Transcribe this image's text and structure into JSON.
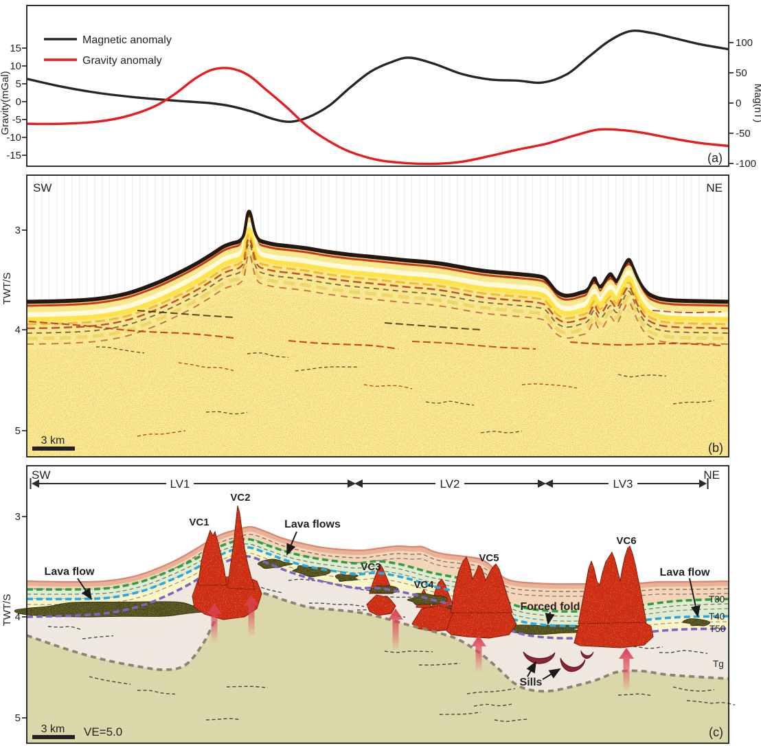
{
  "panel_a": {
    "label": "(a)",
    "legend": [
      {
        "label": "Magnetic anomaly",
        "color": "#2b2424"
      },
      {
        "label": "Gravity anomaly",
        "color": "#e81b1e"
      }
    ],
    "y_left": {
      "title": "Gravity(mGal)",
      "ticks": [
        "15",
        "10",
        "5",
        "0",
        "-5",
        "-10",
        "-15"
      ]
    },
    "y_right": {
      "title": "Mag(nT)",
      "ticks": [
        "100",
        "50",
        "0",
        "-50",
        "-100"
      ]
    }
  },
  "chart_data": {
    "type": "line",
    "title": "",
    "xlabel": "",
    "x_range_note": "normalized distance along SW-NE profile",
    "grid": false,
    "legend_position": "top-left",
    "y_left": {
      "label": "Gravity(mGal)",
      "ticks": [
        15,
        10,
        5,
        0,
        -5,
        -10,
        -15
      ],
      "range": [
        -19,
        27
      ]
    },
    "y_right": {
      "label": "Mag(nT)",
      "ticks": [
        100,
        50,
        0,
        -50,
        -100
      ],
      "range": [
        -108,
        161
      ]
    },
    "series": [
      {
        "name": "Magnetic anomaly",
        "axis": "right",
        "unit": "nT",
        "color": "#2b2424",
        "x": [
          0,
          0.05,
          0.1,
          0.15,
          0.2,
          0.235,
          0.26,
          0.29,
          0.32,
          0.35,
          0.375,
          0.4,
          0.43,
          0.46,
          0.49,
          0.52,
          0.545,
          0.58,
          0.62,
          0.66,
          0.7,
          0.735,
          0.77,
          0.8,
          0.83,
          0.86,
          0.89,
          0.92,
          0.96,
          1.0
        ],
        "values": [
          40,
          27,
          17,
          10,
          5,
          2,
          0,
          -5,
          -14,
          -26,
          -31,
          -24,
          -5,
          25,
          52,
          68,
          75,
          65,
          48,
          39,
          37,
          34,
          48,
          76,
          103,
          119,
          116,
          108,
          97,
          89
        ]
      },
      {
        "name": "Gravity anomaly",
        "axis": "left",
        "unit": "mGal",
        "color": "#e81b1e",
        "x": [
          0,
          0.05,
          0.1,
          0.14,
          0.18,
          0.21,
          0.24,
          0.265,
          0.29,
          0.315,
          0.34,
          0.37,
          0.4,
          0.43,
          0.46,
          0.5,
          0.54,
          0.58,
          0.62,
          0.66,
          0.7,
          0.74,
          0.78,
          0.815,
          0.85,
          0.88,
          0.92,
          0.96,
          1.0
        ],
        "values": [
          -6.2,
          -6.2,
          -5.6,
          -4.2,
          -1.5,
          2.0,
          6.5,
          9.0,
          9.3,
          7.5,
          3.5,
          -1.5,
          -7.0,
          -11.0,
          -14.0,
          -16.3,
          -17.2,
          -17.4,
          -16.8,
          -15.2,
          -13.4,
          -11.8,
          -9.5,
          -7.8,
          -8.0,
          -8.8,
          -10.3,
          -11.6,
          -12.4
        ]
      }
    ]
  },
  "panel_b": {
    "label": "(b)",
    "corner_left": "SW",
    "corner_right": "NE",
    "y_axis": {
      "title": "TWT/S",
      "ticks": [
        "3",
        "4",
        "5"
      ]
    },
    "scale_bar": "3 km"
  },
  "panel_c": {
    "label": "(c)",
    "corner_left": "SW",
    "corner_right": "NE",
    "y_axis": {
      "title": "TWT/S",
      "ticks": [
        "3",
        "4",
        "5"
      ]
    },
    "scale_bar": "3 km",
    "vertical_exaggeration": "VE=5.0",
    "spans": [
      "LV1",
      "LV2",
      "LV3"
    ],
    "volcanoes": [
      "VC1",
      "VC2",
      "VC3",
      "VC4",
      "VC5",
      "VC6"
    ],
    "volcano_label_color": "#e0140c",
    "annotations": {
      "lava_flow_left": "Lava flow",
      "lava_flows": "Lava flows",
      "forced_fold": "Forced fold",
      "sills": "Sills",
      "lava_flow_right": "Lava flow"
    },
    "horizons": [
      {
        "name": "T30",
        "color": "#2f9e41"
      },
      {
        "name": "T40",
        "color": "#29a8e0"
      },
      {
        "name": "T50",
        "color": "#7a66c2"
      },
      {
        "name": "Tg",
        "color": "#8d8271"
      }
    ]
  }
}
